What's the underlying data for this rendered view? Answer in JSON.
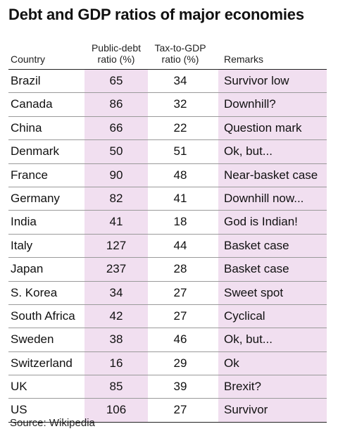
{
  "title": "Debt and GDP ratios of major economies",
  "source": "Source: Wikipedia",
  "chart_data": {
    "type": "table",
    "title": "Debt and GDP ratios of major economies",
    "columns": [
      "Country",
      "Public-debt ratio (%)",
      "Tax-to-GDP ratio (%)",
      "Remarks"
    ],
    "column_lines": [
      [
        "Country"
      ],
      [
        "Public-debt",
        "ratio (%)"
      ],
      [
        "Tax-to-GDP",
        "ratio (%)"
      ],
      [
        "Remarks"
      ]
    ],
    "rows": [
      {
        "country": "Brazil",
        "debt": "65",
        "tax": "34",
        "remarks": "Survivor low"
      },
      {
        "country": "Canada",
        "debt": "86",
        "tax": "32",
        "remarks": "Downhill?"
      },
      {
        "country": "China",
        "debt": "66",
        "tax": "22",
        "remarks": "Question mark"
      },
      {
        "country": "Denmark",
        "debt": "50",
        "tax": "51",
        "remarks": "Ok, but..."
      },
      {
        "country": "France",
        "debt": "90",
        "tax": "48",
        "remarks": "Near-basket case"
      },
      {
        "country": "Germany",
        "debt": "82",
        "tax": "41",
        "remarks": "Downhill now..."
      },
      {
        "country": "India",
        "debt": "41",
        "tax": "18",
        "remarks": "God is Indian!"
      },
      {
        "country": "Italy",
        "debt": "127",
        "tax": "44",
        "remarks": "Basket case"
      },
      {
        "country": "Japan",
        "debt": "237",
        "tax": "28",
        "remarks": "Basket case"
      },
      {
        "country": "S. Korea",
        "debt": "34",
        "tax": "27",
        "remarks": "Sweet spot"
      },
      {
        "country": "South Africa",
        "debt": "42",
        "tax": "27",
        "remarks": "Cyclical"
      },
      {
        "country": "Sweden",
        "debt": "38",
        "tax": "46",
        "remarks": "Ok, but..."
      },
      {
        "country": "Switzerland",
        "debt": "16",
        "tax": "29",
        "remarks": "Ok"
      },
      {
        "country": "UK",
        "debt": "85",
        "tax": "39",
        "remarks": "Brexit?"
      },
      {
        "country": "US",
        "debt": "106",
        "tax": "27",
        "remarks": "Survivor"
      }
    ]
  },
  "colors": {
    "highlight_column": "#f1dff0",
    "rule": "#222222",
    "row_divider": "#9a9a9a"
  }
}
